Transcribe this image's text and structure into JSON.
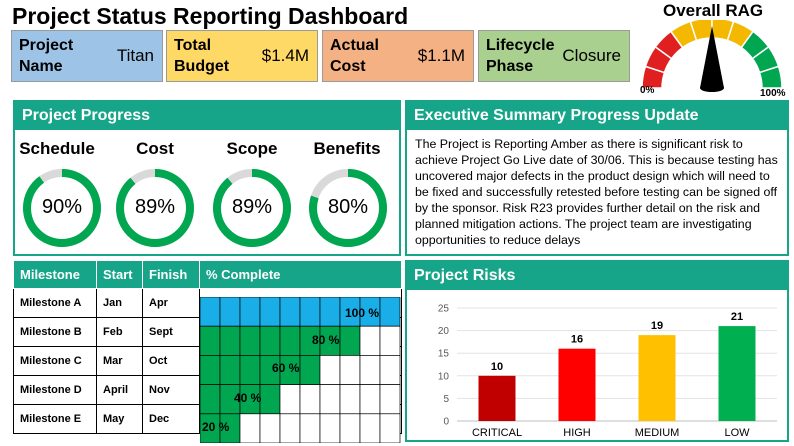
{
  "title": "Project Status Reporting Dashboard",
  "kpis": [
    {
      "label": "Project Name",
      "value": "Titan",
      "color": "#9dc3e6"
    },
    {
      "label": "Total Budget",
      "value": "$1.4M",
      "color": "#ffd966"
    },
    {
      "label": "Actual Cost",
      "value": "$1.1M",
      "color": "#f4b183"
    },
    {
      "label": "Lifecycle Phase",
      "value": "Closure",
      "color": "#a9d08e"
    }
  ],
  "rag": {
    "title": "Overall RAG",
    "min_label": "0%",
    "max_label": "100%",
    "status": "Amber",
    "needle_percent": 50,
    "zone_colors": [
      "#e02020",
      "#f5b800",
      "#00a650"
    ]
  },
  "progress": {
    "heading": "Project Progress",
    "ring_color": "#00a650",
    "track_color": "#d9d9d9",
    "items": [
      {
        "label": "Schedule",
        "value": "90%",
        "percent": 90
      },
      {
        "label": "Cost",
        "value": "89%",
        "percent": 89
      },
      {
        "label": "Scope",
        "value": "89%",
        "percent": 89
      },
      {
        "label": "Benefits",
        "value": "80%",
        "percent": 80
      }
    ]
  },
  "summary": {
    "heading": "Executive Summary Progress Update",
    "text": "The Project is Reporting Amber as there is significant risk to achieve Project Go Live date of 30/06. This is because testing has uncovered major defects in the product design which will need to be fixed and successfully retested before testing can be signed off by the sponsor. Risk R23 provides further detail on the risk and planned mitigation actions. The project team are investigating opportunities to reduce delays"
  },
  "milestones": {
    "headers": [
      "Milestone",
      "Start",
      "Finish",
      "% Complete"
    ],
    "rows": [
      {
        "name": "Milestone A",
        "start": "Jan",
        "finish": "Apr",
        "complete": "100 %",
        "percent": 100,
        "color": "#1aaee8"
      },
      {
        "name": "Milestone B",
        "start": "Feb",
        "finish": "Sept",
        "complete": "80 %",
        "percent": 80,
        "color": "#00a650"
      },
      {
        "name": "Milestone C",
        "start": "Mar",
        "finish": "Oct",
        "complete": "60 %",
        "percent": 60,
        "color": "#00a650"
      },
      {
        "name": "Milestone D",
        "start": "April",
        "finish": "Nov",
        "complete": "40 %",
        "percent": 40,
        "color": "#00a650"
      },
      {
        "name": "Milestone E",
        "start": "May",
        "finish": "Dec",
        "complete": "20 %",
        "percent": 20,
        "color": "#00a650"
      }
    ]
  },
  "risks": {
    "heading": "Project Risks"
  },
  "chart_data": {
    "type": "bar",
    "categories": [
      "CRITICAL",
      "HIGH",
      "MEDIUM",
      "LOW"
    ],
    "values": [
      10,
      16,
      19,
      21
    ],
    "colors": [
      "#c00000",
      "#ff0000",
      "#ffc000",
      "#00b050"
    ],
    "ylim": [
      0,
      25
    ],
    "yticks": [
      0,
      5,
      10,
      15,
      20,
      25
    ],
    "grid": true,
    "title": "",
    "xlabel": "",
    "ylabel": ""
  }
}
